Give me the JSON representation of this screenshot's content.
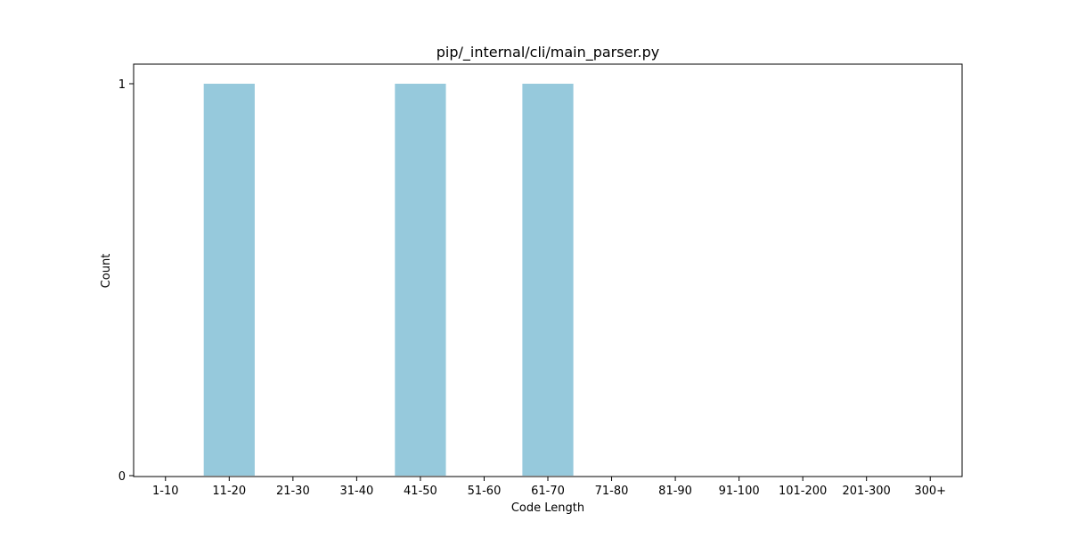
{
  "chart_data": {
    "type": "bar",
    "title": "pip/_internal/cli/main_parser.py",
    "xlabel": "Code Length",
    "ylabel": "Count",
    "categories": [
      "1-10",
      "11-20",
      "21-30",
      "31-40",
      "41-50",
      "51-60",
      "61-70",
      "71-80",
      "81-90",
      "91-100",
      "101-200",
      "201-300",
      "300+"
    ],
    "values": [
      0,
      1,
      0,
      0,
      1,
      0,
      1,
      0,
      0,
      0,
      0,
      0,
      0
    ],
    "ylim": [
      0,
      1
    ],
    "yticks": [
      0,
      1
    ],
    "grid": false,
    "legend": false,
    "bar_color": "#96c9dc"
  }
}
